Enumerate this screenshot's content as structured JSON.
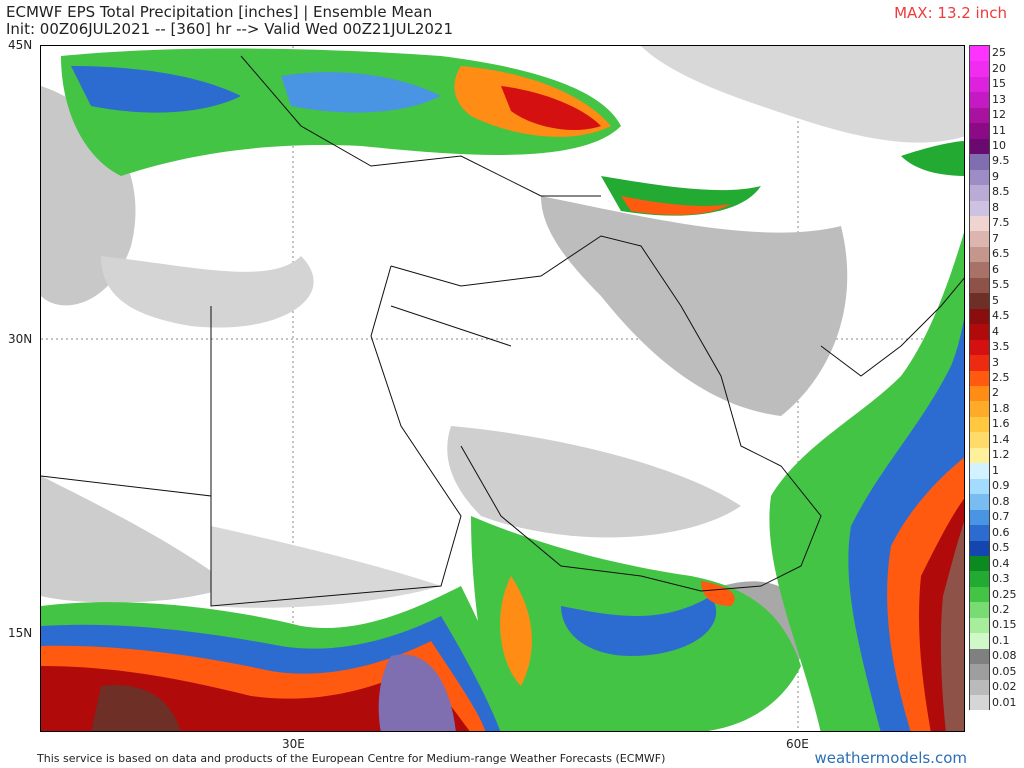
{
  "header": {
    "title_line1": "ECMWF EPS Total Precipitation [inches] | Ensemble Mean",
    "title_line2": "Init: 00Z06JUL2021 -- [360] hr --> Valid Wed 00Z21JUL2021",
    "max_label": "MAX: 13.2 inch"
  },
  "axes": {
    "lat_labels": [
      "45N",
      "30N",
      "15N"
    ],
    "lon_labels": [
      "30E",
      "60E"
    ]
  },
  "colorbar": {
    "levels": [
      "25",
      "20",
      "15",
      "13",
      "12",
      "11",
      "10",
      "9.5",
      "9",
      "8.5",
      "8",
      "7.5",
      "7",
      "6.5",
      "6",
      "5.5",
      "5",
      "4.5",
      "4",
      "3.5",
      "3",
      "2.5",
      "2",
      "1.8",
      "1.6",
      "1.4",
      "1.2",
      "1",
      "0.9",
      "0.8",
      "0.7",
      "0.6",
      "0.5",
      "0.4",
      "0.3",
      "0.25",
      "0.2",
      "0.15",
      "0.1",
      "0.08",
      "0.05",
      "0.02",
      "0.01"
    ],
    "colors": [
      "#ff33ff",
      "#ef2cef",
      "#dd22dd",
      "#c41ac4",
      "#a8129e",
      "#8c0a86",
      "#6a0a70",
      "#7f6fb0",
      "#9d8cc6",
      "#b9aad6",
      "#cdc2e2",
      "#f0d4d0",
      "#dcb6ae",
      "#c4968c",
      "#a87268",
      "#8e5248",
      "#6e2f26",
      "#8a0e0e",
      "#b00a0a",
      "#d41010",
      "#ee2a10",
      "#ff5a10",
      "#ff8c14",
      "#ffaa28",
      "#ffc840",
      "#ffdc6a",
      "#fff09c",
      "#d2f2ff",
      "#a4dcff",
      "#78bcf2",
      "#4a94e4",
      "#2c6cd0",
      "#1446b0",
      "#0c8a20",
      "#22aa32",
      "#44c444",
      "#78dc72",
      "#a6ee9c",
      "#d0f8c8",
      "#808080",
      "#9e9e9e",
      "#bababa",
      "#d6d6d6"
    ]
  },
  "footer": {
    "credit": "This service is based on data and products of the European Centre for Medium-range Weather Forecasts (ECMWF)",
    "brand": "weathermodels.com"
  }
}
